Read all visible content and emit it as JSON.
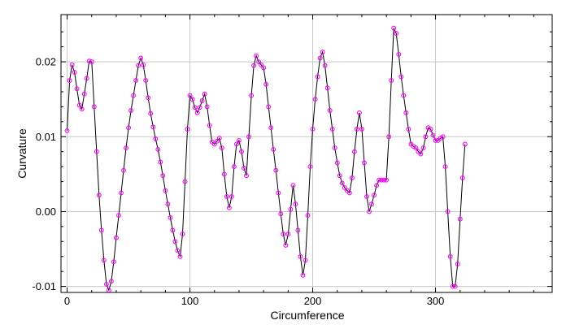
{
  "chart_data": {
    "type": "line",
    "title": "",
    "xlabel": "Circumference",
    "ylabel": "Curvature",
    "xlim": [
      -5,
      395
    ],
    "ylim": [
      -0.0108,
      0.0263
    ],
    "x_ticks": [
      0,
      100,
      200,
      300
    ],
    "x_tick_labels": [
      "0",
      "100",
      "200",
      "300"
    ],
    "y_ticks": [
      -0.01,
      0.0,
      0.01,
      0.02
    ],
    "y_tick_labels": [
      "-0.01",
      "0.00",
      "0.01",
      "0.02"
    ],
    "grid": true,
    "line_color": "#000000",
    "marker_color": "#ff00ff",
    "marker": "open-circle",
    "series": [
      {
        "x_start": 0,
        "x_step": 2,
        "values": [
          0.0108,
          0.0175,
          0.0196,
          0.0186,
          0.0164,
          0.0142,
          0.0137,
          0.0157,
          0.0178,
          0.0201,
          0.02,
          0.014,
          0.008,
          0.0022,
          -0.0025,
          -0.0065,
          -0.0097,
          -0.0105,
          -0.0093,
          -0.0067,
          -0.0035,
          -0.0005,
          0.0025,
          0.0055,
          0.0085,
          0.0112,
          0.0135,
          0.0155,
          0.0175,
          0.0195,
          0.0205,
          0.0196,
          0.0175,
          0.0152,
          0.0131,
          0.0113,
          0.0097,
          0.0083,
          0.0066,
          0.0048,
          0.0028,
          0.001,
          -0.0008,
          -0.0025,
          -0.004,
          -0.0052,
          -0.006,
          -0.003,
          0.004,
          0.011,
          0.0155,
          0.015,
          0.0139,
          0.0132,
          0.0139,
          0.0148,
          0.0157,
          0.014,
          0.0115,
          0.0093,
          0.009,
          0.0094,
          0.0098,
          0.0085,
          0.005,
          0.002,
          0.0005,
          0.002,
          0.006,
          0.009,
          0.0095,
          0.008,
          0.0058,
          0.0048,
          0.01,
          0.0155,
          0.0195,
          0.0208,
          0.02,
          0.0196,
          0.0192,
          0.017,
          0.014,
          0.0112,
          0.0083,
          0.0055,
          0.0025,
          -0.0003,
          -0.003,
          -0.0045,
          -0.003,
          0.0003,
          0.0035,
          0.001,
          -0.0025,
          -0.006,
          -0.0085,
          -0.0065,
          -0.0005,
          0.006,
          0.011,
          0.015,
          0.018,
          0.0205,
          0.0213,
          0.0195,
          0.0165,
          0.0135,
          0.011,
          0.0085,
          0.0065,
          0.0048,
          0.0038,
          0.0032,
          0.0028,
          0.0025,
          0.0045,
          0.008,
          0.011,
          0.0132,
          0.011,
          0.0065,
          0.002,
          0.0,
          0.001,
          0.0022,
          0.0035,
          0.0042,
          0.0042,
          0.0042,
          0.0042,
          0.01,
          0.0175,
          0.0245,
          0.0238,
          0.021,
          0.018,
          0.0155,
          0.0132,
          0.011,
          0.009,
          0.0087,
          0.0085,
          0.008,
          0.0077,
          0.0085,
          0.01,
          0.0112,
          0.011,
          0.0102,
          0.0095,
          0.0095,
          0.0098,
          0.01,
          0.006,
          0.0,
          -0.006,
          -0.01,
          -0.01,
          -0.007,
          -0.001,
          0.0045,
          0.009
        ]
      }
    ]
  }
}
